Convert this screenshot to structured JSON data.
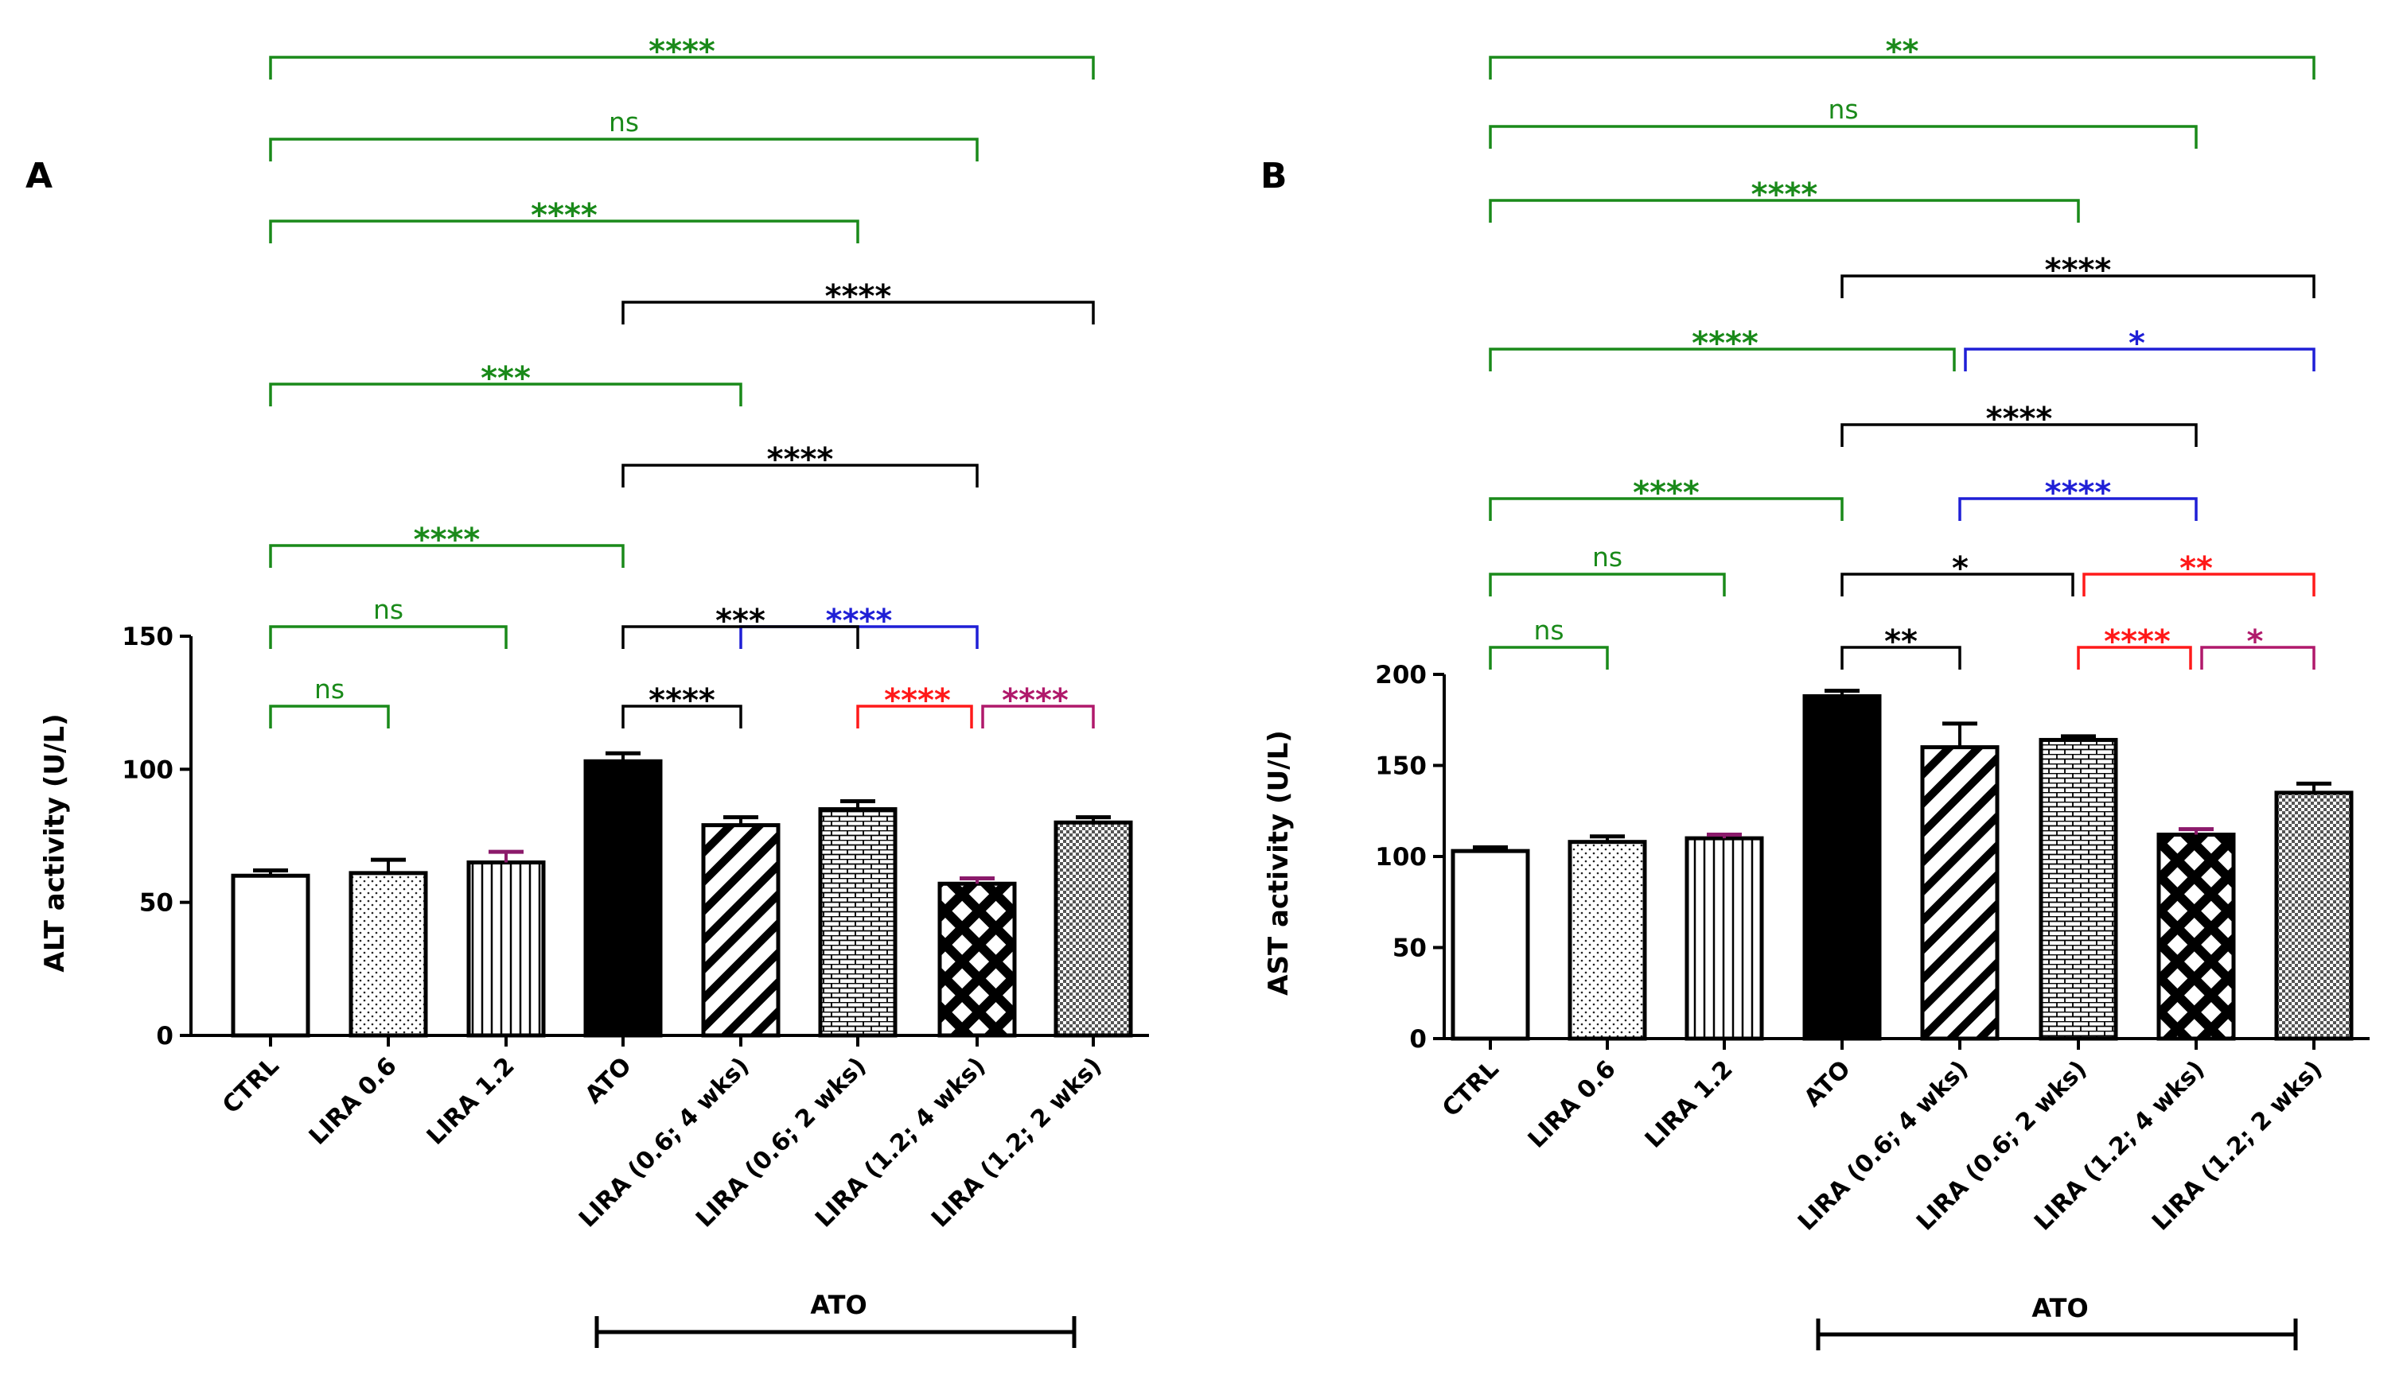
{
  "colors": {
    "green": "#1a8a1a",
    "black": "#000000",
    "blue": "#1f1fd6",
    "red": "#ff1a1a",
    "magenta": "#b0196b"
  },
  "chart_data": [
    {
      "panel": "A",
      "type": "bar",
      "ylabel": "ALT activity (U/L)",
      "ylim": [
        0,
        150
      ],
      "yticks": [
        0,
        50,
        100,
        150
      ],
      "categories": [
        "CTRL",
        "LIRA 0.6",
        "LIRA 1.2",
        "ATO",
        "LIRA (0.6; 4 wks)",
        "LIRA (0.6; 2 wks)",
        "LIRA (1.2; 4 wks)",
        "LIRA (1.2; 2 wks)"
      ],
      "values": [
        60,
        61,
        65,
        103,
        79,
        85,
        57,
        80
      ],
      "errors": [
        2,
        5,
        4,
        3,
        3,
        3,
        2,
        2
      ],
      "patterns": [
        "none",
        "dots",
        "vlines",
        "solid",
        "diag",
        "brick",
        "cross",
        "check"
      ],
      "group_bracket": {
        "label": "ATO",
        "from": 3,
        "to": 7
      },
      "comparisons": [
        {
          "from": 0,
          "to": 7,
          "label": "****",
          "color": "green"
        },
        {
          "from": 0,
          "to": 6,
          "label": "ns",
          "color": "green"
        },
        {
          "from": 0,
          "to": 5,
          "label": "****",
          "color": "green"
        },
        {
          "from": 3,
          "to": 7,
          "label": "****",
          "color": "black"
        },
        {
          "from": 0,
          "to": 4,
          "label": "***",
          "color": "green"
        },
        {
          "from": 3,
          "to": 6,
          "label": "****",
          "color": "black"
        },
        {
          "from": 0,
          "to": 3,
          "label": "****",
          "color": "green"
        },
        {
          "from": 4,
          "to": 6,
          "label": "****",
          "color": "blue"
        },
        {
          "from": 0,
          "to": 2,
          "label": "ns",
          "color": "green"
        },
        {
          "from": 3,
          "to": 5,
          "label": "***",
          "color": "black"
        },
        {
          "from": 0,
          "to": 1,
          "label": "ns",
          "color": "green"
        },
        {
          "from": 3,
          "to": 4,
          "label": "****",
          "color": "black"
        },
        {
          "from": 5,
          "to": 6,
          "label": "****",
          "color": "red"
        },
        {
          "from": 6,
          "to": 7,
          "label": "****",
          "color": "magenta"
        }
      ]
    },
    {
      "panel": "B",
      "type": "bar",
      "ylabel": "AST activity (U/L)",
      "ylim": [
        0,
        200
      ],
      "yticks": [
        0,
        50,
        100,
        150,
        200
      ],
      "categories": [
        "CTRL",
        "LIRA 0.6",
        "LIRA 1.2",
        "ATO",
        "LIRA (0.6; 4 wks)",
        "LIRA (0.6; 2 wks)",
        "LIRA (1.2; 4 wks)",
        "LIRA (1.2; 2 wks)"
      ],
      "values": [
        103,
        108,
        110,
        188,
        160,
        164,
        112,
        135
      ],
      "errors": [
        2,
        3,
        2,
        3,
        13,
        2,
        3,
        5
      ],
      "patterns": [
        "none",
        "dots",
        "vlines",
        "solid",
        "diag",
        "brick",
        "cross",
        "check"
      ],
      "group_bracket": {
        "label": "ATO",
        "from": 3,
        "to": 7
      },
      "comparisons": [
        {
          "from": 0,
          "to": 7,
          "label": "**",
          "color": "green"
        },
        {
          "from": 0,
          "to": 6,
          "label": "ns",
          "color": "green"
        },
        {
          "from": 0,
          "to": 5,
          "label": "****",
          "color": "green"
        },
        {
          "from": 3,
          "to": 7,
          "label": "****",
          "color": "black"
        },
        {
          "from": 0,
          "to": 4,
          "label": "****",
          "color": "green"
        },
        {
          "from": 4,
          "to": 7,
          "label": "*",
          "color": "blue"
        },
        {
          "from": 3,
          "to": 6,
          "label": "****",
          "color": "black"
        },
        {
          "from": 0,
          "to": 3,
          "label": "****",
          "color": "green"
        },
        {
          "from": 4,
          "to": 6,
          "label": "****",
          "color": "blue"
        },
        {
          "from": 0,
          "to": 2,
          "label": "ns",
          "color": "green"
        },
        {
          "from": 3,
          "to": 5,
          "label": "*",
          "color": "black"
        },
        {
          "from": 5,
          "to": 7,
          "label": "**",
          "color": "red"
        },
        {
          "from": 0,
          "to": 1,
          "label": "ns",
          "color": "green"
        },
        {
          "from": 3,
          "to": 4,
          "label": "**",
          "color": "black"
        },
        {
          "from": 5,
          "to": 6,
          "label": "****",
          "color": "red"
        },
        {
          "from": 6,
          "to": 7,
          "label": "*",
          "color": "magenta"
        }
      ]
    }
  ]
}
